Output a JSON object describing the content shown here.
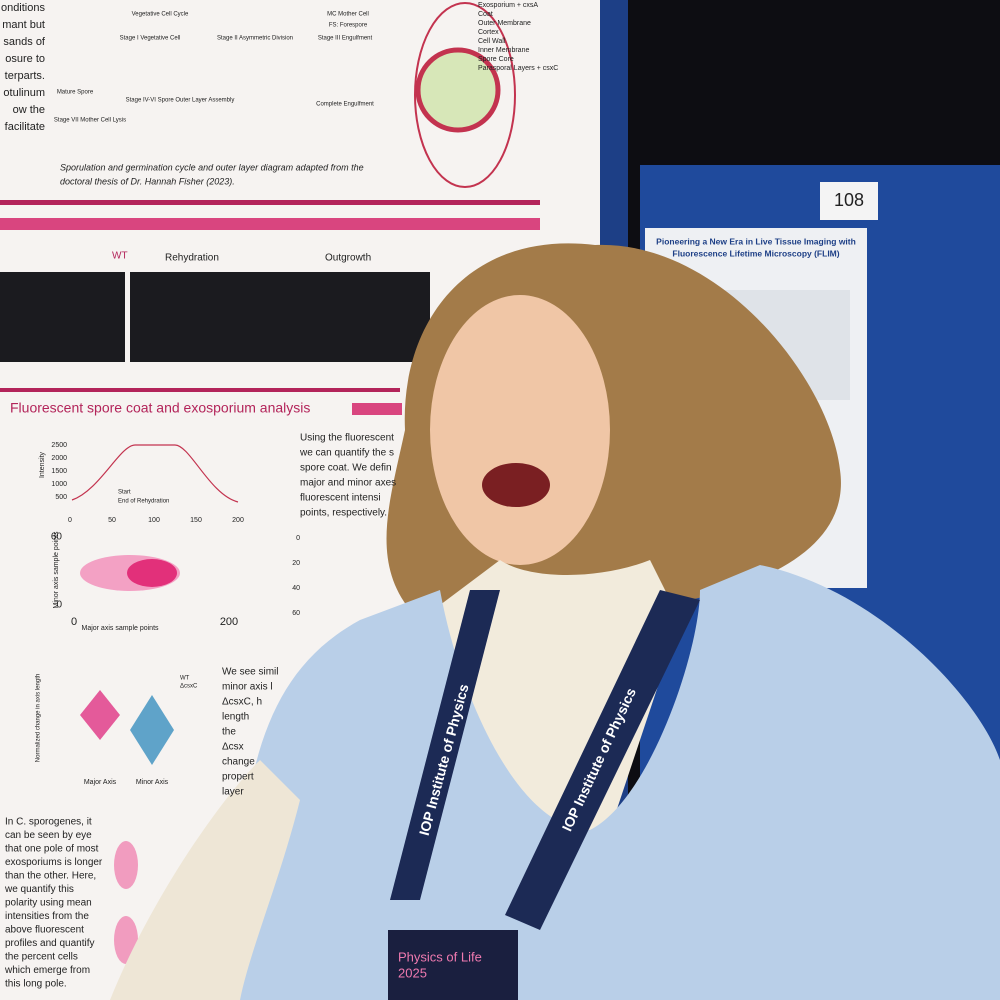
{
  "poster": {
    "top_lines": [
      "onditions",
      "mant but",
      "sands of",
      "osure to",
      "terparts.",
      "otulinum",
      "ow the",
      "facilitate"
    ],
    "stages": [
      "Vegetative Cell Cycle",
      "Stage I Vegetative Cell",
      "Stage II Asymmetric Division",
      "Stage III Engulfment",
      "MC Mother Cell",
      "FS: Forespore",
      "Mature Spore",
      "Stage IV-VI Spore Outer Layer Assembly",
      "Complete Engulfment",
      "Stage VII Mother Cell Lysis"
    ],
    "layers": [
      "Exosporium + cxsA",
      "Coat",
      "Outer Membrane",
      "Cortex",
      "Cell Wall",
      "Inner Membrane",
      "Spore Core",
      "Parasporal Layers + csxC"
    ],
    "caption": [
      "Sporulation and germination cycle and outer layer diagram adapted from the",
      "doctoral thesis of Dr. Hannah Fisher (2023)."
    ],
    "timeline": [
      "WT",
      "Rehydration",
      "Outgrowth"
    ],
    "section_title": "Fluorescent spore coat and exosporium analysis",
    "intensity_chart": {
      "y_label": "Intensity",
      "yticks": [
        500,
        1000,
        1500,
        2000,
        2500
      ],
      "xticks": [
        0,
        50,
        100,
        150,
        200
      ],
      "legend": [
        "Start",
        "End of Rehydration"
      ]
    },
    "axis_chart": {
      "y_label": "Minor axis sample points",
      "x_label": "Major axis sample points",
      "yticks": [
        0,
        60
      ],
      "xticks": [
        0,
        200
      ]
    },
    "profile_ticks": [
      0,
      20,
      40,
      60
    ],
    "violin": {
      "y_label": "Normalized change in axis length",
      "categories": [
        "Major Axis",
        "Minor Axis"
      ],
      "legend": [
        "WT",
        "ΔcsxC"
      ]
    },
    "text_right_1": [
      "Using the fluorescent",
      "we can quantify the s",
      "spore coat. We defin",
      "major and minor axes",
      "fluorescent intensi",
      "points, respectively."
    ],
    "text_right_2": [
      "We see simil",
      "minor axis l",
      "ΔcsxC, h",
      "length",
      "the",
      "Δcsx",
      "change",
      "propert",
      "layer"
    ],
    "text_left": [
      "In C. sporogenes, it",
      "can be seen by eye",
      "that one pole of most",
      "exosporiums is longer",
      "than the other. Here,",
      "we quantify this",
      "polarity using mean",
      "intensities from the",
      "above fluorescent",
      "profiles and quantify",
      "the percent cells",
      "which emerge from",
      "this long pole."
    ]
  },
  "booth_number": "108",
  "neighbor_poster_title": [
    "Pioneering a New Era in Live Tissue Imaging with",
    "Fluorescence Lifetime Microscopy (FLIM)"
  ],
  "lanyard_text": "IOP Institute of Physics",
  "badge": [
    "Physics of Life",
    "2025"
  ]
}
